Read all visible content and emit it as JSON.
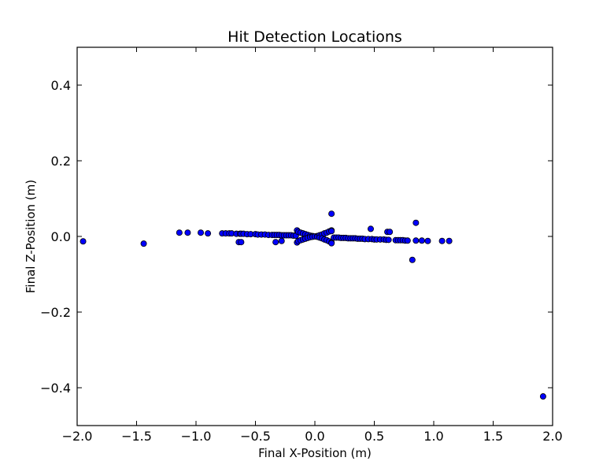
{
  "chart_data": {
    "type": "scatter",
    "title": "Hit Detection Locations",
    "xlabel": "Final X-Position (m)",
    "ylabel": "Final Z-Position (m)",
    "xlim": [
      -2.0,
      2.0
    ],
    "ylim": [
      -0.5,
      0.5
    ],
    "xticks": [
      "−2.0",
      "−1.5",
      "−1.0",
      "−0.5",
      "0.0",
      "0.5",
      "1.0",
      "1.5",
      "2.0"
    ],
    "yticks": [
      "−0.4",
      "−0.2",
      "0.0",
      "0.2",
      "0.4"
    ],
    "grid": false,
    "marker_color": "#0000ff",
    "marker_edge_color": "#000000",
    "x": [
      -1.95,
      -1.44,
      -1.14,
      -1.07,
      -0.96,
      -0.9,
      -0.78,
      -0.75,
      -0.72,
      -0.7,
      -0.66,
      -0.63,
      -0.62,
      -0.6,
      -0.57,
      -0.54,
      -0.5,
      -0.48,
      -0.45,
      -0.42,
      -0.39,
      -0.36,
      -0.34,
      -0.32,
      -0.3,
      -0.28,
      -0.26,
      -0.24,
      -0.22,
      -0.2,
      -0.18,
      -0.16,
      -0.64,
      -0.62,
      -0.33,
      -0.28,
      -0.15,
      -0.15,
      -0.14,
      -0.14,
      -0.12,
      -0.12,
      -0.1,
      -0.1,
      -0.08,
      -0.08,
      -0.06,
      -0.06,
      -0.04,
      -0.04,
      -0.02,
      -0.02,
      0.0,
      0.02,
      0.02,
      0.04,
      0.04,
      0.06,
      0.06,
      0.08,
      0.08,
      0.1,
      0.1,
      0.12,
      0.12,
      0.14,
      0.14,
      0.14,
      0.14,
      0.16,
      0.18,
      0.2,
      0.22,
      0.24,
      0.26,
      0.28,
      0.3,
      0.32,
      0.34,
      0.36,
      0.38,
      0.4,
      0.42,
      0.45,
      0.48,
      0.5,
      0.52,
      0.55,
      0.58,
      0.6,
      0.62,
      0.68,
      0.7,
      0.72,
      0.74,
      0.76,
      0.78,
      0.85,
      0.9,
      0.95,
      1.07,
      1.13,
      0.14,
      0.47,
      0.61,
      0.63,
      0.85,
      0.82,
      1.92
    ],
    "y": [
      -0.013,
      -0.019,
      0.01,
      0.01,
      0.01,
      0.008,
      0.008,
      0.008,
      0.008,
      0.008,
      0.007,
      0.007,
      0.007,
      0.007,
      0.006,
      0.006,
      0.006,
      0.005,
      0.005,
      0.005,
      0.004,
      0.004,
      0.004,
      0.004,
      0.004,
      0.003,
      0.003,
      0.003,
      0.003,
      0.003,
      0.002,
      0.002,
      -0.015,
      -0.015,
      -0.015,
      -0.012,
      0.016,
      -0.016,
      0.012,
      -0.012,
      0.01,
      -0.01,
      0.008,
      -0.008,
      0.006,
      -0.006,
      0.004,
      -0.004,
      0.002,
      -0.002,
      0.001,
      -0.001,
      0.0,
      0.001,
      -0.001,
      0.003,
      -0.003,
      0.005,
      -0.005,
      0.008,
      -0.008,
      0.01,
      -0.01,
      0.013,
      -0.013,
      0.016,
      -0.016,
      0.014,
      -0.018,
      -0.003,
      -0.003,
      -0.003,
      -0.004,
      -0.004,
      -0.004,
      -0.005,
      -0.005,
      -0.005,
      -0.005,
      -0.006,
      -0.006,
      -0.006,
      -0.007,
      -0.007,
      -0.007,
      -0.008,
      -0.008,
      -0.008,
      -0.008,
      -0.009,
      -0.009,
      -0.01,
      -0.01,
      -0.01,
      -0.01,
      -0.011,
      -0.011,
      -0.011,
      -0.011,
      -0.012,
      -0.012,
      -0.012,
      0.06,
      0.02,
      0.012,
      0.012,
      0.036,
      -0.062,
      -0.423
    ]
  }
}
